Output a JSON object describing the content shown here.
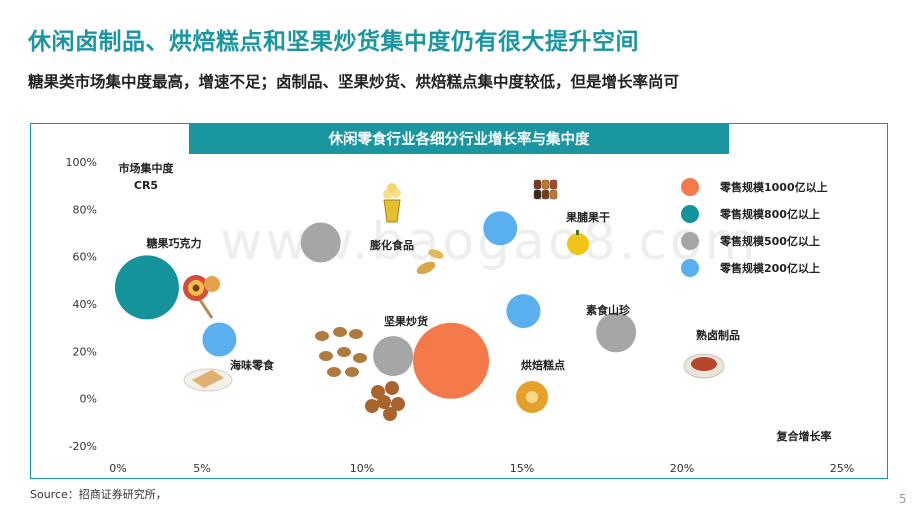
{
  "page": {
    "title": "休闲卤制品、烘焙糕点和坚果炒货集中度仍有很大提升空间",
    "subtitle": "糖果类市场集中度最高，增速不足；卤制品、坚果炒货、烘焙糕点集中度较低，但是增长率尚可",
    "source": "Source：招商证券研究所，",
    "page_number": "5",
    "watermark": "www.baogao8.com"
  },
  "chart_data": {
    "type": "scatter",
    "title": "休闲零食行业各细分行业增长率与集中度",
    "xlabel": "复合增长率",
    "ylabel_line1": "市场集中度",
    "ylabel_line2": "CR5",
    "x_ticks": [
      "0%",
      "5%",
      "10%",
      "15%",
      "20%",
      "25%"
    ],
    "y_ticks": [
      "100%",
      "80%",
      "60%",
      "40%",
      "20%",
      "0%",
      "-20%"
    ],
    "xlim": [
      0,
      25
    ],
    "ylim": [
      -20,
      100
    ],
    "size_classes": [
      {
        "label": "零售规模1000亿以上",
        "color": "#f47a4c",
        "r": 38
      },
      {
        "label": "零售规模800亿以上",
        "color": "#15939b",
        "r": 32
      },
      {
        "label": "零售规模500亿以上",
        "color": "#a6a6a6",
        "r": 20
      },
      {
        "label": "零售规模200亿以上",
        "color": "#5aafee",
        "r": 17
      }
    ],
    "points": [
      {
        "name": "糖果巧克力",
        "x": 1.0,
        "y": 47,
        "size_class": 1
      },
      {
        "name": "海味零食",
        "x": 3.5,
        "y": 25,
        "size_class": 3
      },
      {
        "name": "膨化食品",
        "x": 7.0,
        "y": 66,
        "size_class": 2
      },
      {
        "name": "坚果炒货",
        "x": 9.5,
        "y": 18,
        "size_class": 2
      },
      {
        "name": "烘焙糕点",
        "x": 11.5,
        "y": 16,
        "size_class": 0
      },
      {
        "name": "果脯果干",
        "x": 13.2,
        "y": 72,
        "size_class": 3
      },
      {
        "name": "素食山珍",
        "x": 14.0,
        "y": 37,
        "size_class": 3
      },
      {
        "name": "熟卤制品",
        "x": 17.2,
        "y": 28,
        "size_class": 2
      }
    ]
  }
}
